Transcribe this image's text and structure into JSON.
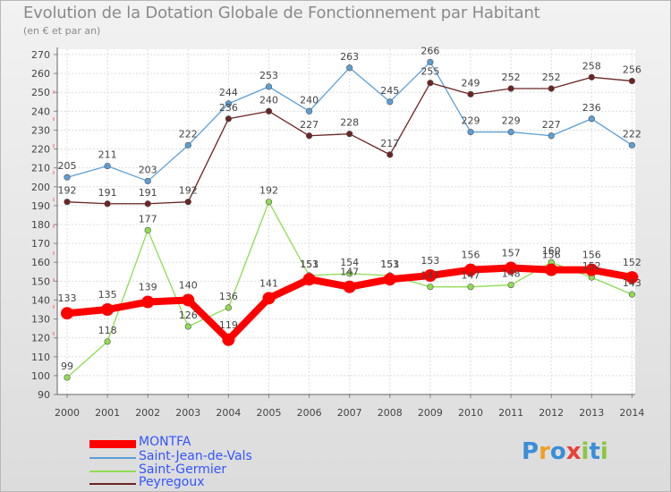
{
  "title": "Evolution de la Dotation Globale de Fonctionnement par Habitant",
  "subtitle": "(en € et par an)",
  "logo": {
    "text": "Proxiti",
    "colors": [
      "#3a8ed8",
      "#f0a020",
      "#e8403a",
      "#8cc63f"
    ]
  },
  "chart_data": {
    "type": "line",
    "title": "Evolution de la Dotation Globale de Fonctionnement par Habitant",
    "subtitle": "(en € et par an)",
    "xlabel": "",
    "ylabel": "",
    "x": [
      "2000",
      "2001",
      "2002",
      "2003",
      "2004",
      "2005",
      "2006",
      "2007",
      "2008",
      "2009",
      "2010",
      "2011",
      "2012",
      "2013",
      "2014"
    ],
    "ylim": [
      90,
      270
    ],
    "yticks": [
      90,
      100,
      110,
      120,
      130,
      140,
      150,
      160,
      170,
      180,
      190,
      200,
      210,
      220,
      230,
      240,
      250,
      260,
      270
    ],
    "grid": true,
    "legend_position": "bottom-left",
    "series": [
      {
        "name": "MONTFA",
        "color": "#ff0000",
        "line_style": "thick",
        "values": [
          133,
          135,
          139,
          140,
          119,
          141,
          151,
          147,
          151,
          153,
          156,
          157,
          156,
          156,
          152
        ]
      },
      {
        "name": "Saint-Jean-de-Vals",
        "color": "#5c9fd6",
        "line_style": "thin",
        "values": [
          205,
          211,
          203,
          222,
          244,
          253,
          240,
          263,
          245,
          266,
          229,
          229,
          227,
          236,
          222
        ]
      },
      {
        "name": "Saint-Germier",
        "color": "#8fdc52",
        "line_style": "thin",
        "values": [
          99,
          118,
          177,
          126,
          136,
          192,
          153,
          154,
          153,
          147,
          147,
          148,
          160,
          152,
          143
        ]
      },
      {
        "name": "Peyregoux",
        "color": "#6b2424",
        "line_style": "thin",
        "values": [
          192,
          191,
          191,
          192,
          236,
          240,
          227,
          228,
          217,
          255,
          249,
          252,
          252,
          258,
          256
        ]
      }
    ]
  }
}
